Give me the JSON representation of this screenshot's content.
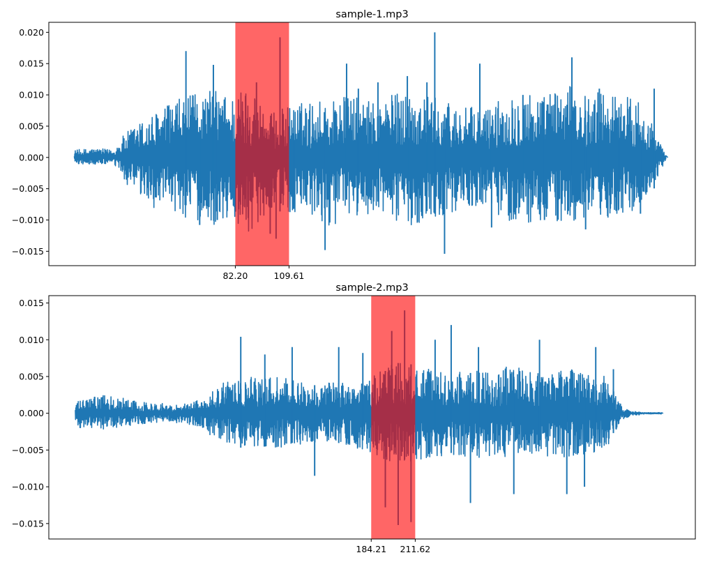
{
  "chart_data": [
    {
      "type": "line",
      "title": "sample-1.mp3",
      "xlabel": "",
      "ylabel": "",
      "ylim": [
        -0.0173,
        0.0216
      ],
      "yticks": [
        -0.015,
        -0.01,
        -0.005,
        0.0,
        0.005,
        0.01,
        0.015,
        0.02
      ],
      "ytick_labels": [
        "−0.015",
        "−0.010",
        "−0.005",
        "0.000",
        "0.005",
        "0.010",
        "0.015",
        "0.020"
      ],
      "xlim": [
        -13,
        317
      ],
      "xticks": [
        82.2,
        109.61
      ],
      "xtick_labels": [
        "82.20",
        "109.61"
      ],
      "highlight": {
        "start": 82.2,
        "end": 109.61,
        "color": "#ff0000",
        "opacity": 0.6
      },
      "line_color": "#1f77b4",
      "waveform_envelope": {
        "x": [
          0,
          10,
          20,
          25,
          30,
          40,
          50,
          60,
          70,
          80,
          90,
          100,
          110,
          120,
          130,
          140,
          150,
          160,
          170,
          180,
          190,
          200,
          210,
          220,
          230,
          240,
          250,
          260,
          270,
          280,
          290,
          298,
          302
        ],
        "upper": [
          0.0012,
          0.0015,
          0.0012,
          0.0035,
          0.005,
          0.007,
          0.009,
          0.01,
          0.011,
          0.01,
          0.012,
          0.007,
          0.0085,
          0.009,
          0.0095,
          0.01,
          0.009,
          0.01,
          0.011,
          0.01,
          0.009,
          0.008,
          0.008,
          0.01,
          0.011,
          0.01,
          0.012,
          0.01,
          0.011,
          0.01,
          0.0095,
          0.003,
          0.0003
        ],
        "lower": [
          -0.001,
          -0.0012,
          -0.001,
          -0.0035,
          -0.006,
          -0.008,
          -0.009,
          -0.01,
          -0.011,
          -0.01,
          -0.012,
          -0.008,
          -0.009,
          -0.01,
          -0.011,
          -0.01,
          -0.009,
          -0.01,
          -0.011,
          -0.01,
          -0.009,
          -0.008,
          -0.008,
          -0.01,
          -0.011,
          -0.01,
          -0.011,
          -0.01,
          -0.01,
          -0.009,
          -0.008,
          -0.003,
          -0.0003
        ]
      },
      "peaks": [
        {
          "x": 57,
          "y": 0.017
        },
        {
          "x": 64,
          "y": -0.0108
        },
        {
          "x": 71,
          "y": 0.0148
        },
        {
          "x": 73,
          "y": -0.01
        },
        {
          "x": 93,
          "y": 0.012
        },
        {
          "x": 100,
          "y": -0.0122
        },
        {
          "x": 103,
          "y": -0.013
        },
        {
          "x": 105,
          "y": 0.0192
        },
        {
          "x": 112,
          "y": -0.0082
        },
        {
          "x": 128,
          "y": -0.0148
        },
        {
          "x": 139,
          "y": 0.015
        },
        {
          "x": 145,
          "y": 0.011
        },
        {
          "x": 155,
          "y": 0.012
        },
        {
          "x": 170,
          "y": 0.013
        },
        {
          "x": 180,
          "y": 0.012
        },
        {
          "x": 184,
          "y": 0.02
        },
        {
          "x": 189,
          "y": -0.0154
        },
        {
          "x": 207,
          "y": 0.015
        },
        {
          "x": 213,
          "y": -0.0112
        },
        {
          "x": 229,
          "y": 0.01
        },
        {
          "x": 240,
          "y": -0.01
        },
        {
          "x": 254,
          "y": 0.016
        },
        {
          "x": 261,
          "y": -0.0115
        },
        {
          "x": 268,
          "y": 0.011
        },
        {
          "x": 278,
          "y": 0.008
        },
        {
          "x": 289,
          "y": -0.009
        },
        {
          "x": 296,
          "y": 0.011
        }
      ]
    },
    {
      "type": "line",
      "title": "sample-2.mp3",
      "xlabel": "",
      "ylabel": "",
      "ylim": [
        -0.0171,
        0.016
      ],
      "yticks": [
        -0.015,
        -0.01,
        -0.005,
        0.0,
        0.005,
        0.01,
        0.015
      ],
      "ytick_labels": [
        "−0.015",
        "−0.010",
        "−0.005",
        "0.000",
        "0.005",
        "0.010",
        "0.015"
      ],
      "xlim": [
        -16.5,
        386
      ],
      "xticks": [
        184.21,
        211.62
      ],
      "xtick_labels": [
        "184.21",
        "211.62"
      ],
      "highlight": {
        "start": 184.21,
        "end": 211.62,
        "color": "#ff0000",
        "opacity": 0.6
      },
      "line_color": "#1f77b4",
      "waveform_envelope": {
        "x": [
          0,
          10,
          20,
          30,
          40,
          50,
          60,
          70,
          80,
          85,
          90,
          100,
          110,
          120,
          130,
          140,
          150,
          160,
          170,
          180,
          190,
          200,
          210,
          220,
          230,
          240,
          250,
          260,
          270,
          280,
          290,
          300,
          310,
          320,
          330,
          335,
          340,
          345,
          355,
          365
        ],
        "upper": [
          0.0015,
          0.0022,
          0.0025,
          0.0022,
          0.0015,
          0.0015,
          0.0012,
          0.0015,
          0.002,
          0.003,
          0.004,
          0.0045,
          0.005,
          0.005,
          0.0048,
          0.0045,
          0.004,
          0.0045,
          0.004,
          0.004,
          0.006,
          0.007,
          0.006,
          0.006,
          0.0055,
          0.006,
          0.006,
          0.0055,
          0.0065,
          0.006,
          0.0055,
          0.006,
          0.006,
          0.0055,
          0.005,
          0.0035,
          0.001,
          0.0003,
          0.0001,
          0.0001
        ],
        "lower": [
          -0.002,
          -0.002,
          -0.0022,
          -0.0018,
          -0.0015,
          -0.0014,
          -0.0012,
          -0.0015,
          -0.002,
          -0.0032,
          -0.004,
          -0.0042,
          -0.0046,
          -0.0048,
          -0.0046,
          -0.0044,
          -0.004,
          -0.0042,
          -0.0045,
          -0.005,
          -0.006,
          -0.007,
          -0.0065,
          -0.006,
          -0.006,
          -0.006,
          -0.006,
          -0.006,
          -0.006,
          -0.0058,
          -0.006,
          -0.006,
          -0.006,
          -0.0055,
          -0.0048,
          -0.0032,
          -0.0012,
          -0.0004,
          -0.0001,
          -0.0001
        ]
      },
      "peaks": [
        {
          "x": 103,
          "y": 0.0104
        },
        {
          "x": 118,
          "y": 0.008
        },
        {
          "x": 135,
          "y": 0.009
        },
        {
          "x": 149,
          "y": -0.0085
        },
        {
          "x": 164,
          "y": 0.009
        },
        {
          "x": 179,
          "y": 0.0082
        },
        {
          "x": 193,
          "y": -0.0128
        },
        {
          "x": 197,
          "y": 0.0112
        },
        {
          "x": 201,
          "y": -0.0152
        },
        {
          "x": 205,
          "y": 0.014
        },
        {
          "x": 209,
          "y": -0.0148
        },
        {
          "x": 224,
          "y": 0.01
        },
        {
          "x": 234,
          "y": 0.012
        },
        {
          "x": 246,
          "y": -0.0122
        },
        {
          "x": 251,
          "y": 0.009
        },
        {
          "x": 273,
          "y": -0.011
        },
        {
          "x": 289,
          "y": 0.01
        },
        {
          "x": 306,
          "y": -0.011
        },
        {
          "x": 317,
          "y": -0.01
        },
        {
          "x": 324,
          "y": 0.009
        },
        {
          "x": 335,
          "y": 0.006
        }
      ]
    }
  ]
}
